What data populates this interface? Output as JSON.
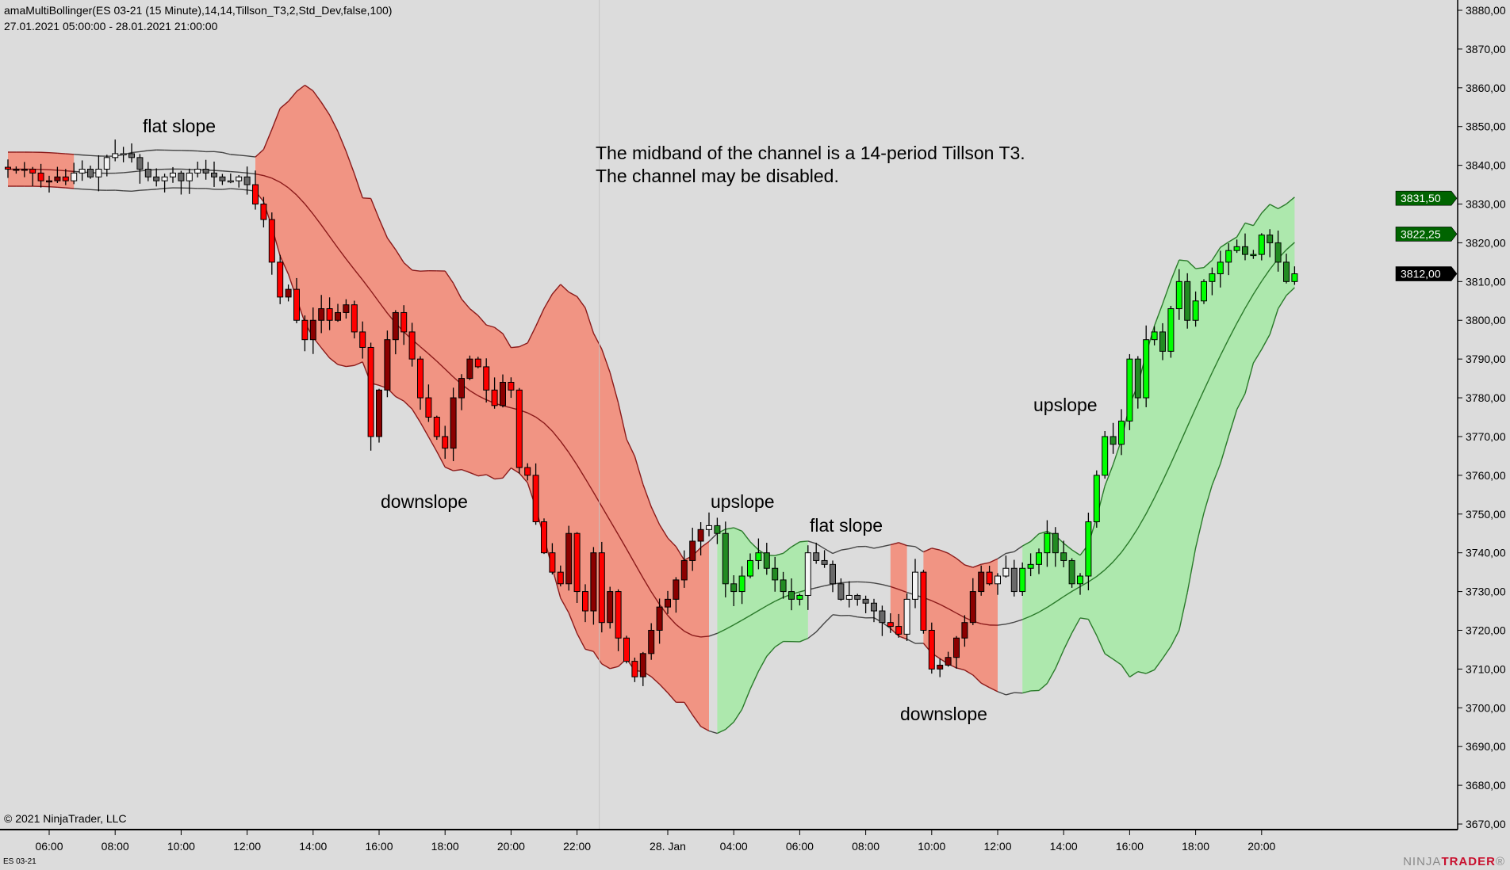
{
  "header": {
    "indicator": "amaMultiBollinger(ES 03-21 (15 Minute),14,14,Tillson_T3,2,Std_Dev,false,100)",
    "range": "27.01.2021 05:00:00 - 28.01.2021 21:00:00"
  },
  "footer": {
    "copyright": "© 2021 NinjaTrader, LLC",
    "instrument": "ES 03-21",
    "logo_a": "NINJA",
    "logo_b": "TRADER",
    "logo_reg": "®"
  },
  "annotations": {
    "flat1": "flat slope",
    "note1": "The midband of the channel is a 14-period Tillson T3.",
    "note2": "The channel may be disabled.",
    "down1": "downslope",
    "up1": "upslope",
    "flat2": "flat slope",
    "down2": "downslope",
    "up2": "upslope"
  },
  "colors": {
    "bg": "#dcdcdc",
    "red_fill": "#f19483",
    "green_fill": "#ade8ad",
    "red_line": "#8b1a1a",
    "green_line": "#2a7a2a",
    "flat_line": "#444444",
    "down_bright": "#ff0000",
    "up_dark_red": "#8b0000",
    "up_bright_green": "#00ff00",
    "down_dark_green": "#228b22",
    "flat_up": "#f4f4f4",
    "flat_down": "#696969"
  },
  "chart_data": {
    "type": "candlestick",
    "title": "amaMultiBollinger(ES 03-21 (15 Minute),14,14,Tillson_T3,2,Std_Dev,false,100)",
    "ylim": [
      3670,
      3880
    ],
    "yticks": [
      3880,
      3870,
      3860,
      3850,
      3840,
      3830,
      3820,
      3810,
      3800,
      3790,
      3780,
      3770,
      3760,
      3750,
      3740,
      3730,
      3720,
      3710,
      3700,
      3690,
      3680,
      3670
    ],
    "ytick_labels": [
      "3880,00",
      "3870,00",
      "3860,00",
      "3850,00",
      "3840,00",
      "3830,00",
      "3820,00",
      "3810,00",
      "3800,00",
      "3790,00",
      "3780,00",
      "3770,00",
      "3760,00",
      "3750,00",
      "3740,00",
      "3730,00",
      "3720,00",
      "3710,00",
      "3700,00",
      "3690,00",
      "3680,00",
      "3670,00"
    ],
    "xticks": [
      {
        "bar": 5,
        "label": "06:00"
      },
      {
        "bar": 13,
        "label": "08:00"
      },
      {
        "bar": 21,
        "label": "10:00"
      },
      {
        "bar": 29,
        "label": "12:00"
      },
      {
        "bar": 37,
        "label": "14:00"
      },
      {
        "bar": 45,
        "label": "16:00"
      },
      {
        "bar": 53,
        "label": "18:00"
      },
      {
        "bar": 61,
        "label": "20:00"
      },
      {
        "bar": 69,
        "label": "22:00"
      },
      {
        "bar": 80,
        "label": "28. Jan"
      },
      {
        "bar": 88,
        "label": "04:00"
      },
      {
        "bar": 96,
        "label": "06:00"
      },
      {
        "bar": 104,
        "label": "08:00"
      },
      {
        "bar": 112,
        "label": "10:00"
      },
      {
        "bar": 120,
        "label": "12:00"
      },
      {
        "bar": 128,
        "label": "14:00"
      },
      {
        "bar": 136,
        "label": "16:00"
      },
      {
        "bar": 144,
        "label": "18:00"
      },
      {
        "bar": 152,
        "label": "20:00"
      }
    ],
    "session_break_bar": 71.7,
    "period": 14,
    "std_multiplier": 2,
    "close": [
      3839,
      3839,
      3839,
      3838,
      3836,
      3836,
      3837,
      3836,
      3838,
      3839,
      3837,
      3839,
      3842,
      3843,
      3843,
      3842,
      3839,
      3837,
      3836,
      3837,
      3838,
      3836,
      3838,
      3839,
      3838,
      3837,
      3836,
      3836,
      3837,
      3835,
      3830,
      3826,
      3815,
      3806,
      3808,
      3800,
      3795,
      3800,
      3803,
      3800,
      3802,
      3804,
      3797,
      3793,
      3770,
      3782,
      3795,
      3802,
      3797,
      3790,
      3780,
      3775,
      3770,
      3767,
      3780,
      3785,
      3790,
      3788,
      3782,
      3778,
      3784,
      3782,
      3762,
      3760,
      3748,
      3740,
      3735,
      3732,
      3745,
      3730,
      3725,
      3740,
      3722,
      3730,
      3718,
      3712,
      3708,
      3714,
      3720,
      3726,
      3728,
      3733,
      3738,
      3743,
      3746,
      3747,
      3745,
      3732,
      3730,
      3734,
      3738,
      3740,
      3736,
      3733,
      3730,
      3728,
      3729,
      3740,
      3738,
      3737,
      3732,
      3728,
      3729,
      3728,
      3727,
      3725,
      3722,
      3721,
      3719,
      3728,
      3735,
      3720,
      3710,
      3711,
      3713,
      3718,
      3722,
      3730,
      3735,
      3732,
      3734,
      3736,
      3730,
      3736,
      3737,
      3740,
      3745,
      3740,
      3738,
      3732,
      3734,
      3748,
      3760,
      3770,
      3768,
      3774,
      3790,
      3780,
      3795,
      3797,
      3792,
      3803,
      3810,
      3800,
      3805,
      3810,
      3812,
      3815,
      3818,
      3819,
      3817,
      3817,
      3822,
      3820,
      3815,
      3810,
      3812
    ],
    "regimes": [
      {
        "from": 0,
        "to": 7,
        "trend": "down"
      },
      {
        "from": 8,
        "to": 29,
        "trend": "flat"
      },
      {
        "from": 30,
        "to": 84,
        "trend": "down"
      },
      {
        "from": 85,
        "to": 85,
        "trend": "flat"
      },
      {
        "from": 86,
        "to": 96,
        "trend": "up"
      },
      {
        "from": 97,
        "to": 106,
        "trend": "flat"
      },
      {
        "from": 107,
        "to": 108,
        "trend": "down"
      },
      {
        "from": 109,
        "to": 110,
        "trend": "flat"
      },
      {
        "from": 111,
        "to": 119,
        "trend": "down"
      },
      {
        "from": 120,
        "to": 122,
        "trend": "flat"
      },
      {
        "from": 123,
        "to": 156,
        "trend": "up"
      }
    ],
    "price_markers": [
      {
        "value": 3831.5,
        "label": "3831,50",
        "color": "#006400"
      },
      {
        "value": 3822.25,
        "label": "3822,25",
        "color": "#006400"
      },
      {
        "value": 3812.0,
        "label": "3812,00",
        "color": "#000000"
      }
    ]
  }
}
